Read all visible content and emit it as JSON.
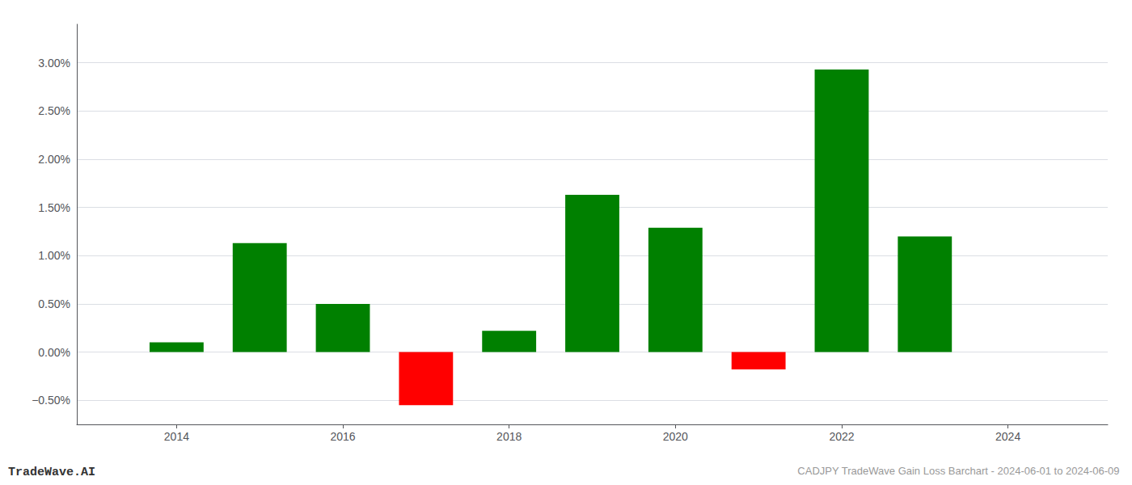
{
  "chart_data": {
    "type": "bar",
    "title": "CADJPY TradeWave Gain Loss Barchart - 2024-06-01 to 2024-06-09",
    "annotations": [
      "TradeWave.AI"
    ],
    "x": [
      2014,
      2015,
      2016,
      2017,
      2018,
      2019,
      2020,
      2021,
      2022,
      2023
    ],
    "values": [
      0.001,
      0.0113,
      0.005,
      -0.0055,
      0.0022,
      0.0163,
      0.0129,
      -0.0018,
      0.0293,
      0.012
    ],
    "colors": [
      "#008000",
      "#008000",
      "#008000",
      "#ff0000",
      "#008000",
      "#008000",
      "#008000",
      "#ff0000",
      "#008000",
      "#008000"
    ],
    "xlim": [
      2012.8,
      2025.2
    ],
    "xticks": [
      2014,
      2016,
      2018,
      2020,
      2022,
      2024
    ],
    "ylim": [
      -0.0075,
      0.034
    ],
    "yticks": [
      {
        "value": -0.005,
        "label": "−0.50%"
      },
      {
        "value": 0.0,
        "label": "0.00%"
      },
      {
        "value": 0.005,
        "label": "0.50%"
      },
      {
        "value": 0.01,
        "label": "1.00%"
      },
      {
        "value": 0.015,
        "label": "1.50%"
      },
      {
        "value": 0.02,
        "label": "2.00%"
      },
      {
        "value": 0.025,
        "label": "2.50%"
      },
      {
        "value": 0.03,
        "label": "3.00%"
      }
    ],
    "grid": true
  }
}
